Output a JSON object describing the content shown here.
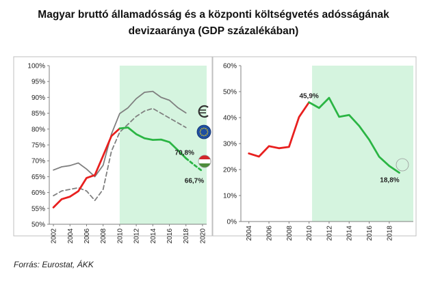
{
  "title_line1": "Magyar bruttó államadósság és a központi költségvetés adósságának",
  "title_line2": "devizaaránya (GDP százalékában)",
  "source": "Forrás: Eurostat, ÁKK",
  "colors": {
    "red": "#e8201f",
    "green": "#2bb544",
    "gray": "#7f7f7f",
    "shade": "#d5f4df",
    "eu_blue": "#1f4fa0",
    "eu_star": "#f4d41b",
    "hu_red": "#d3262b",
    "hu_green": "#4d8d3b"
  },
  "icons": [
    "euro-icon",
    "eu-flag-icon",
    "hungary-flag-icon"
  ],
  "chart_data": [
    {
      "type": "line",
      "xlim": [
        2001.5,
        2020.5
      ],
      "ylim": [
        50,
        100
      ],
      "yticks": [
        "50%",
        "55%",
        "60%",
        "65%",
        "70%",
        "75%",
        "80%",
        "85%",
        "90%",
        "95%",
        "100%"
      ],
      "xticks": [
        "2002",
        "2004",
        "2006",
        "2008",
        "2010",
        "2012",
        "2014",
        "2016",
        "2018",
        "2020"
      ],
      "shaded_from": 2010,
      "series": [
        {
          "id": "hu-actual",
          "color": "red",
          "style": "solid",
          "x": [
            2002,
            2003,
            2004,
            2005,
            2006,
            2007,
            2008,
            2009,
            2010
          ],
          "y": [
            55.3,
            57.9,
            58.7,
            60.4,
            64.6,
            65.5,
            71.6,
            77.8,
            80.2
          ]
        },
        {
          "id": "hu-green",
          "color": "green",
          "style": "solid",
          "x": [
            2010,
            2011,
            2012,
            2013,
            2014,
            2015,
            2016,
            2017,
            2018
          ],
          "y": [
            80.2,
            80.5,
            78.4,
            77.1,
            76.6,
            76.7,
            75.9,
            73.4,
            70.8
          ]
        },
        {
          "id": "hu-forecast",
          "color": "green",
          "style": "dashed",
          "x": [
            2018,
            2019,
            2020
          ],
          "y": [
            70.8,
            68.7,
            66.7
          ]
        },
        {
          "id": "euro-area",
          "color": "gray",
          "style": "solid",
          "x": [
            2002,
            2003,
            2004,
            2005,
            2006,
            2007,
            2008,
            2009,
            2010,
            2011,
            2012,
            2013,
            2014,
            2015,
            2016,
            2017,
            2018
          ],
          "y": [
            67.1,
            68.1,
            68.5,
            69.3,
            67.4,
            65.0,
            68.6,
            78.4,
            84.9,
            86.7,
            89.6,
            91.6,
            91.9,
            90.0,
            89.1,
            86.8,
            85.1
          ]
        },
        {
          "id": "eu",
          "color": "gray",
          "style": "dashed",
          "x": [
            2002,
            2003,
            2004,
            2005,
            2006,
            2007,
            2008,
            2009,
            2010,
            2011,
            2012,
            2013,
            2014,
            2015,
            2016,
            2017,
            2018
          ],
          "y": [
            59.0,
            60.5,
            61.0,
            61.5,
            60.5,
            57.5,
            61.0,
            73.0,
            79.0,
            81.5,
            84.0,
            85.7,
            86.5,
            85.0,
            83.5,
            82.0,
            80.5
          ]
        }
      ],
      "annotations": [
        {
          "text": "70,8%",
          "x": 2018,
          "y": 70.8
        },
        {
          "text": "66,7%",
          "x": 2020,
          "y": 66.7
        }
      ]
    },
    {
      "type": "line",
      "xlim": [
        2003.2,
        2020.4
      ],
      "ylim": [
        0,
        60
      ],
      "yticks": [
        "0%",
        "10%",
        "20%",
        "30%",
        "40%",
        "50%",
        "60%"
      ],
      "xticks": [
        "2004",
        "2006",
        "2008",
        "2010",
        "2012",
        "2014",
        "2016",
        "2018"
      ],
      "shaded_from": 2010.3,
      "series": [
        {
          "id": "fx-red",
          "color": "red",
          "style": "solid",
          "x": [
            2004,
            2005,
            2006,
            2007,
            2008,
            2009,
            2010
          ],
          "y": [
            26.2,
            25.0,
            29.0,
            28.2,
            28.7,
            40.2,
            45.9
          ]
        },
        {
          "id": "fx-green",
          "color": "green",
          "style": "solid",
          "x": [
            2010,
            2011,
            2012,
            2013,
            2014,
            2015,
            2016,
            2017,
            2018,
            2019
          ],
          "y": [
            45.9,
            43.7,
            47.6,
            40.3,
            41.0,
            36.8,
            31.5,
            24.9,
            21.4,
            18.8
          ]
        }
      ],
      "annotations": [
        {
          "text": "45,9%",
          "x": 2010,
          "y": 45.9
        },
        {
          "text": "18,8%",
          "x": 2019,
          "y": 18.8
        }
      ]
    }
  ]
}
